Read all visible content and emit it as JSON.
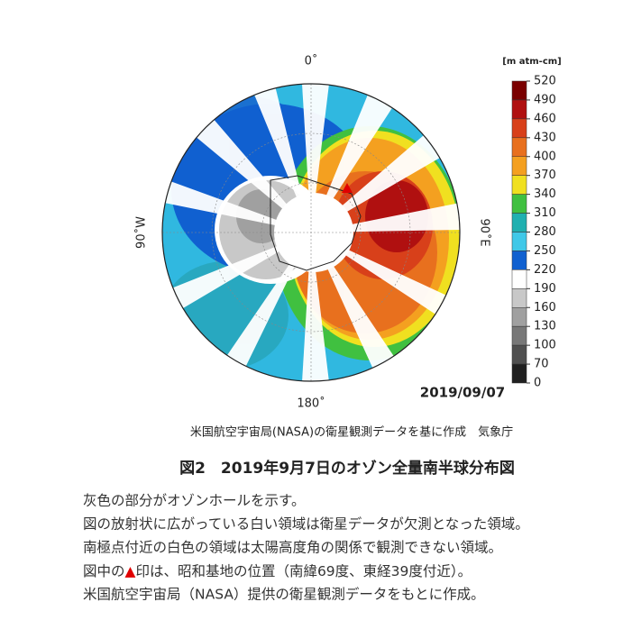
{
  "map": {
    "labels": {
      "north": "0˚",
      "south": "180˚",
      "west": "90˚W",
      "east": "90˚E"
    },
    "date": "2019/09/07",
    "colorbar": {
      "unit": "[m atm-cm]",
      "ticks": [
        520,
        490,
        460,
        430,
        400,
        370,
        340,
        310,
        280,
        250,
        220,
        190,
        160,
        130,
        100,
        70,
        0
      ],
      "colors": [
        "#7a0000",
        "#b01010",
        "#d8401a",
        "#e8701e",
        "#f4a020",
        "#f0e020",
        "#40c040",
        "#20b0b0",
        "#40c8e8",
        "#1060d0",
        "#ffffff",
        "#c8c8c8",
        "#a0a0a0",
        "#787878",
        "#505050",
        "#202020"
      ]
    },
    "source": "米国航空宇宙局(NASA)の衛星観測データを基に作成　気象庁"
  },
  "caption": "図2　2019年9月7日のオゾン全量南半球分布図",
  "description": {
    "line1": "灰色の部分がオゾンホールを示す。",
    "line2": "図の放射状に広がっている白い領域は衛星データが欠測となった領域。",
    "line3": "南極点付近の白色の領域は太陽高度角の関係で観測できない領域。",
    "line4": {
      "before": "図中の",
      "symbol": "▲",
      "after": "印は、昭和基地の位置（南緯69度、東経39度付近）。"
    },
    "line5": "米国航空宇宙局（NASA）提供の衛星観測データをもとに作成。"
  }
}
